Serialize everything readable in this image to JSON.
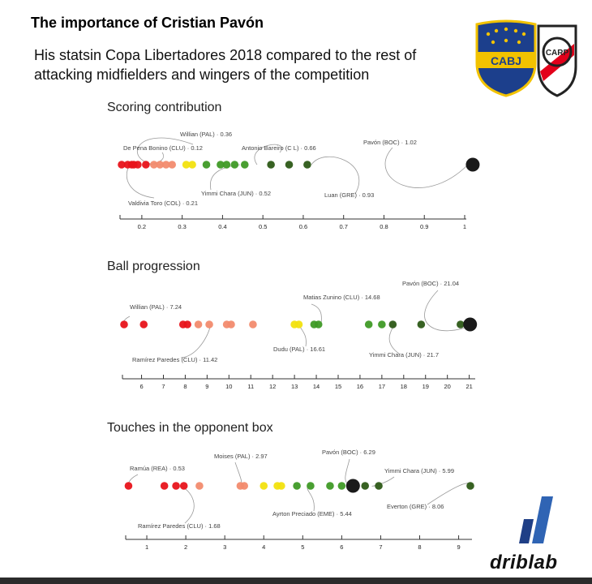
{
  "header": {
    "title": "The importance of Cristian Pavón",
    "subtitle": "His statsin Copa Libertadores 2018 compared to the rest of attacking midfielders and wingers of the competition"
  },
  "logos": {
    "boca": "CABJ",
    "river": "CARP"
  },
  "brand": "driblab",
  "colors": {
    "red": "#e8141b",
    "salmon": "#f28b6e",
    "yellow": "#f2e20f",
    "green": "#3f9a26",
    "darkgreen": "#2d5a17",
    "black": "#1a1a1a",
    "accent_blue": "#2f64b4"
  },
  "chart_data": [
    {
      "type": "scatter",
      "title": "Scoring contribution",
      "xlim": [
        0.15,
        1.0
      ],
      "ticks": [
        0.2,
        0.3,
        0.4,
        0.5,
        0.6,
        0.7,
        0.8,
        0.9,
        1
      ],
      "tick_labels": [
        "0.2",
        "0.3",
        "0.4",
        "0.5",
        "0.6",
        "0.7",
        "0.8",
        "0.9",
        "1"
      ],
      "points": [
        {
          "x": 0.15,
          "color": "red"
        },
        {
          "x": 0.165,
          "color": "red"
        },
        {
          "x": 0.175,
          "color": "red"
        },
        {
          "x": 0.18,
          "color": "red"
        },
        {
          "x": 0.19,
          "color": "red"
        },
        {
          "x": 0.21,
          "color": "red"
        },
        {
          "x": 0.23,
          "color": "salmon"
        },
        {
          "x": 0.245,
          "color": "salmon"
        },
        {
          "x": 0.26,
          "color": "salmon"
        },
        {
          "x": 0.275,
          "color": "salmon"
        },
        {
          "x": 0.31,
          "color": "yellow"
        },
        {
          "x": 0.325,
          "color": "yellow"
        },
        {
          "x": 0.36,
          "color": "green"
        },
        {
          "x": 0.395,
          "color": "green"
        },
        {
          "x": 0.41,
          "color": "green"
        },
        {
          "x": 0.43,
          "color": "green"
        },
        {
          "x": 0.455,
          "color": "green"
        },
        {
          "x": 0.52,
          "color": "darkgreen"
        },
        {
          "x": 0.565,
          "color": "darkgreen"
        },
        {
          "x": 0.61,
          "color": "darkgreen"
        },
        {
          "x": 1.02,
          "color": "black",
          "big": true
        }
      ],
      "annotations": [
        {
          "label": "Willian (PAL) · 0.36",
          "x": 0.36,
          "pos": "above"
        },
        {
          "label": "De Pena Bonino (CLU) · 0.12",
          "x": 0.12,
          "pos": "above"
        },
        {
          "label": "Antonio Bareiro (C L) · 0.66",
          "x": 0.66,
          "pos": "above"
        },
        {
          "label": "Pavón (BOC) · 1.02",
          "x": 1.02,
          "pos": "above"
        },
        {
          "label": "Yimmi Chara (JUN) · 0.52",
          "x": 0.52,
          "pos": "below"
        },
        {
          "label": "Luan (GRE) · 0.93",
          "x": 0.93,
          "pos": "below"
        },
        {
          "label": "Valdivia Toro (COL) · 0.21",
          "x": 0.21,
          "pos": "below"
        }
      ]
    },
    {
      "type": "scatter",
      "title": "Ball progression",
      "xlim": [
        5.2,
        21.2
      ],
      "ticks": [
        6,
        7,
        8,
        9,
        10,
        11,
        12,
        13,
        14,
        15,
        16,
        17,
        18,
        19,
        20,
        21
      ],
      "tick_labels": [
        "6",
        "7",
        "8",
        "9",
        "10",
        "11",
        "12",
        "13",
        "14",
        "15",
        "16",
        "17",
        "18",
        "19",
        "20",
        "21"
      ],
      "points": [
        {
          "x": 5.2,
          "color": "red"
        },
        {
          "x": 6.1,
          "color": "red"
        },
        {
          "x": 7.9,
          "color": "red"
        },
        {
          "x": 8.1,
          "color": "red"
        },
        {
          "x": 8.6,
          "color": "salmon"
        },
        {
          "x": 9.1,
          "color": "salmon"
        },
        {
          "x": 9.9,
          "color": "salmon"
        },
        {
          "x": 10.1,
          "color": "salmon"
        },
        {
          "x": 11.1,
          "color": "salmon"
        },
        {
          "x": 13.0,
          "color": "yellow"
        },
        {
          "x": 13.2,
          "color": "yellow"
        },
        {
          "x": 13.9,
          "color": "green"
        },
        {
          "x": 14.1,
          "color": "green"
        },
        {
          "x": 16.4,
          "color": "green"
        },
        {
          "x": 17.0,
          "color": "green"
        },
        {
          "x": 17.5,
          "color": "darkgreen"
        },
        {
          "x": 18.8,
          "color": "darkgreen"
        },
        {
          "x": 20.6,
          "color": "darkgreen"
        },
        {
          "x": 21.04,
          "color": "black",
          "big": true
        }
      ],
      "annotations": [
        {
          "label": "Willian (PAL) · 7.24",
          "x": 7.24,
          "pos": "above"
        },
        {
          "label": "Matias Zunino (CLU) · 14.68",
          "x": 14.68,
          "pos": "above"
        },
        {
          "label": "Pavón (BOC) · 21.04",
          "x": 21.04,
          "pos": "above"
        },
        {
          "label": "Ramírez Paredes (CLU) · 11.42",
          "x": 11.42,
          "pos": "below"
        },
        {
          "label": "Dudu (PAL) · 16.61",
          "x": 16.61,
          "pos": "below"
        },
        {
          "label": "Yimmi Chara (JUN) · 21.7",
          "x": 21.7,
          "pos": "below"
        }
      ]
    },
    {
      "type": "scatter",
      "title": "Touches in the opponent box",
      "xlim": [
        0.5,
        9.3
      ],
      "ticks": [
        1,
        2,
        3,
        4,
        5,
        6,
        7,
        8,
        9
      ],
      "tick_labels": [
        "1",
        "2",
        "3",
        "4",
        "5",
        "6",
        "7",
        "8",
        "9"
      ],
      "points": [
        {
          "x": 0.53,
          "color": "red"
        },
        {
          "x": 1.45,
          "color": "red"
        },
        {
          "x": 1.75,
          "color": "red"
        },
        {
          "x": 1.95,
          "color": "red"
        },
        {
          "x": 2.35,
          "color": "salmon"
        },
        {
          "x": 3.4,
          "color": "salmon"
        },
        {
          "x": 3.5,
          "color": "salmon"
        },
        {
          "x": 4.0,
          "color": "yellow"
        },
        {
          "x": 4.35,
          "color": "yellow"
        },
        {
          "x": 4.45,
          "color": "yellow"
        },
        {
          "x": 4.85,
          "color": "green"
        },
        {
          "x": 5.2,
          "color": "green"
        },
        {
          "x": 5.7,
          "color": "green"
        },
        {
          "x": 6.0,
          "color": "green"
        },
        {
          "x": 6.29,
          "color": "black",
          "big": true
        },
        {
          "x": 6.6,
          "color": "darkgreen"
        },
        {
          "x": 6.95,
          "color": "darkgreen"
        },
        {
          "x": 9.3,
          "color": "darkgreen"
        }
      ],
      "annotations": [
        {
          "label": "Ramúa (REA) · 0.53",
          "x": 0.53,
          "pos": "above"
        },
        {
          "label": "Moises (PAL) · 2.97",
          "x": 2.97,
          "pos": "above"
        },
        {
          "label": "Pavón (BOC) · 6.29",
          "x": 6.29,
          "pos": "above"
        },
        {
          "label": "Yimmi Chara (JUN) · 5.99",
          "x": 5.99,
          "pos": "above"
        },
        {
          "label": "Ayrton Preciado (EME) · 5.44",
          "x": 5.44,
          "pos": "below"
        },
        {
          "label": "Everton (GRE) · 8.06",
          "x": 8.06,
          "pos": "below"
        },
        {
          "label": "Ramírez Paredes (CLU) · 1.68",
          "x": 1.68,
          "pos": "below"
        }
      ]
    }
  ]
}
